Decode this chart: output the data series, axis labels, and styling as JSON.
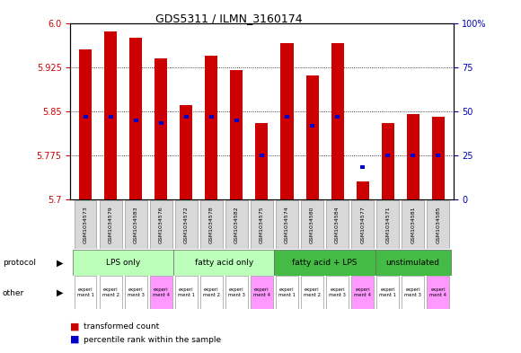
{
  "title": "GDS5311 / ILMN_3160174",
  "samples": [
    "GSM1034573",
    "GSM1034579",
    "GSM1034583",
    "GSM1034576",
    "GSM1034572",
    "GSM1034578",
    "GSM1034582",
    "GSM1034575",
    "GSM1034574",
    "GSM1034580",
    "GSM1034584",
    "GSM1034577",
    "GSM1034571",
    "GSM1034581",
    "GSM1034585"
  ],
  "bar_values": [
    5.955,
    5.985,
    5.975,
    5.94,
    5.86,
    5.945,
    5.92,
    5.83,
    5.965,
    5.91,
    5.965,
    5.73,
    5.83,
    5.845,
    5.84
  ],
  "blue_values": [
    5.84,
    5.84,
    5.835,
    5.83,
    5.84,
    5.84,
    5.835,
    5.775,
    5.84,
    5.825,
    5.84,
    5.755,
    5.775,
    5.775,
    5.775
  ],
  "bar_base": 5.7,
  "ylim_left": [
    5.7,
    6.0
  ],
  "yticks_left": [
    5.7,
    5.775,
    5.85,
    5.925,
    6.0
  ],
  "ylim_right": [
    0,
    100
  ],
  "yticks_right": [
    0,
    25,
    50,
    75,
    100
  ],
  "protocols": [
    {
      "label": "LPS only",
      "start": 0,
      "end": 4,
      "color": "#bbffbb"
    },
    {
      "label": "fatty acid only",
      "start": 4,
      "end": 8,
      "color": "#bbffbb"
    },
    {
      "label": "fatty acid + LPS",
      "start": 8,
      "end": 12,
      "color": "#44bb44"
    },
    {
      "label": "unstimulated",
      "start": 12,
      "end": 15,
      "color": "#44bb44"
    }
  ],
  "other_colors": [
    "#ffffff",
    "#ffffff",
    "#ffffff",
    "#ff99ff",
    "#ffffff",
    "#ffffff",
    "#ffffff",
    "#ff99ff",
    "#ffffff",
    "#ffffff",
    "#ffffff",
    "#ff99ff",
    "#ffffff",
    "#ffffff",
    "#ff99ff"
  ],
  "other_labels": [
    "experi\nment 1",
    "experi\nment 2",
    "experi\nment 3",
    "experi\nment 4",
    "experi\nment 1",
    "experi\nment 2",
    "experi\nment 3",
    "experi\nment 4",
    "experi\nment 1",
    "experi\nment 2",
    "experi\nment 3",
    "experi\nment 4",
    "experi\nment 1",
    "experi\nment 3",
    "experi\nment 4"
  ],
  "bar_color": "#cc0000",
  "blue_color": "#0000cc",
  "bar_width": 0.5,
  "bg_color": "#ffffff",
  "axis_color_left": "#cc0000",
  "axis_color_right": "#0000bb"
}
